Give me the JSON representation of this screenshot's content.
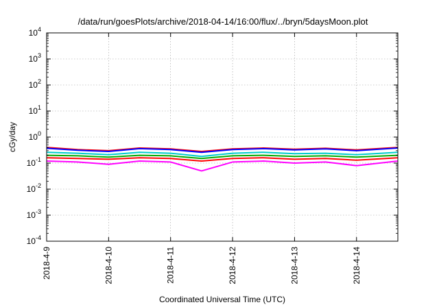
{
  "chart_data": {
    "type": "line",
    "title": "/data/run/goesPlots/archive/2018-04-14/16:00/flux/../bryn/5daysMoon.plot",
    "xlabel": "Coordinated Universal Time (UTC)",
    "ylabel": "cGy/day",
    "yscale": "log",
    "ylim": [
      0.0001,
      10000
    ],
    "xlim": [
      "2018-04-09T00:00",
      "2018-04-14T16:00"
    ],
    "grid": true,
    "x_ticks": [
      "2018-4-9",
      "2018-4-10",
      "2018-4-11",
      "2018-4-12",
      "2018-4-13",
      "2018-4-14"
    ],
    "y_ticks": [
      {
        "base": "10",
        "exp": "-4"
      },
      {
        "base": "10",
        "exp": "-3"
      },
      {
        "base": "10",
        "exp": "-2"
      },
      {
        "base": "10",
        "exp": "-1"
      },
      {
        "base": "10",
        "exp": "0"
      },
      {
        "base": "10",
        "exp": "1"
      },
      {
        "base": "10",
        "exp": "2"
      },
      {
        "base": "10",
        "exp": "3"
      },
      {
        "base": "10",
        "exp": "4"
      }
    ],
    "series": [
      {
        "color": "#ff00ff",
        "x": [
          "2018-04-09T00:00",
          "2018-04-09T12:00",
          "2018-04-10T00:00",
          "2018-04-10T12:00",
          "2018-04-11T00:00",
          "2018-04-11T12:00",
          "2018-04-12T00:00",
          "2018-04-12T12:00",
          "2018-04-13T00:00",
          "2018-04-13T12:00",
          "2018-04-14T00:00",
          "2018-04-14T16:00"
        ],
        "values": [
          0.12,
          0.11,
          0.09,
          0.12,
          0.11,
          0.05,
          0.11,
          0.12,
          0.1,
          0.11,
          0.08,
          0.12
        ]
      },
      {
        "color": "#ff0000",
        "x": [
          "2018-04-09T00:00",
          "2018-04-09T12:00",
          "2018-04-10T00:00",
          "2018-04-10T12:00",
          "2018-04-11T00:00",
          "2018-04-11T12:00",
          "2018-04-12T00:00",
          "2018-04-12T12:00",
          "2018-04-13T00:00",
          "2018-04-13T12:00",
          "2018-04-14T00:00",
          "2018-04-14T16:00"
        ],
        "values": [
          0.16,
          0.15,
          0.14,
          0.16,
          0.15,
          0.12,
          0.15,
          0.16,
          0.14,
          0.15,
          0.13,
          0.16
        ]
      },
      {
        "color": "#00aa00",
        "x": [
          "2018-04-09T00:00",
          "2018-04-09T12:00",
          "2018-04-10T00:00",
          "2018-04-10T12:00",
          "2018-04-11T00:00",
          "2018-04-11T12:00",
          "2018-04-12T00:00",
          "2018-04-12T12:00",
          "2018-04-13T00:00",
          "2018-04-13T12:00",
          "2018-04-14T00:00",
          "2018-04-14T16:00"
        ],
        "values": [
          0.2,
          0.19,
          0.17,
          0.2,
          0.19,
          0.15,
          0.19,
          0.2,
          0.18,
          0.19,
          0.17,
          0.2
        ]
      },
      {
        "color": "#00cccc",
        "x": [
          "2018-04-09T00:00",
          "2018-04-09T12:00",
          "2018-04-10T00:00",
          "2018-04-10T12:00",
          "2018-04-11T00:00",
          "2018-04-11T12:00",
          "2018-04-12T00:00",
          "2018-04-12T12:00",
          "2018-04-13T00:00",
          "2018-04-13T12:00",
          "2018-04-14T00:00",
          "2018-04-14T16:00"
        ],
        "values": [
          0.26,
          0.24,
          0.21,
          0.26,
          0.24,
          0.18,
          0.24,
          0.26,
          0.23,
          0.24,
          0.21,
          0.26
        ]
      },
      {
        "color": "#ff0000",
        "x": [
          "2018-04-09T00:00",
          "2018-04-09T12:00",
          "2018-04-10T00:00",
          "2018-04-10T12:00",
          "2018-04-11T00:00",
          "2018-04-11T12:00",
          "2018-04-12T00:00",
          "2018-04-12T12:00",
          "2018-04-13T00:00",
          "2018-04-13T12:00",
          "2018-04-14T00:00",
          "2018-04-14T16:00"
        ],
        "values": [
          0.4,
          0.33,
          0.3,
          0.38,
          0.35,
          0.28,
          0.35,
          0.38,
          0.34,
          0.37,
          0.32,
          0.4
        ]
      },
      {
        "color": "#0000ff",
        "x": [
          "2018-04-09T00:00",
          "2018-04-09T12:00",
          "2018-04-10T00:00",
          "2018-04-10T12:00",
          "2018-04-11T00:00",
          "2018-04-11T12:00",
          "2018-04-12T00:00",
          "2018-04-12T12:00",
          "2018-04-13T00:00",
          "2018-04-13T12:00",
          "2018-04-14T00:00",
          "2018-04-14T16:00"
        ],
        "values": [
          0.37,
          0.31,
          0.28,
          0.36,
          0.33,
          0.26,
          0.33,
          0.36,
          0.32,
          0.35,
          0.3,
          0.38
        ]
      }
    ]
  }
}
